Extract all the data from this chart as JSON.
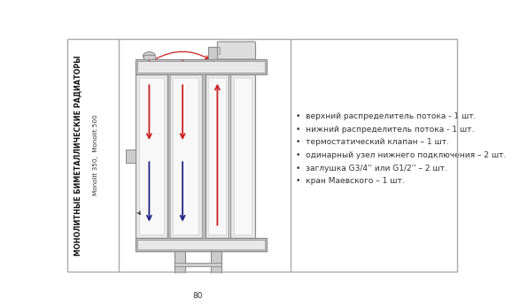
{
  "bg_color": "#ffffff",
  "border_color": "#aaaaaa",
  "left_text_main": "МОНОЛИТНЫЕ БИМЕТАЛЛИЧЕСКИЕ РАДИАТОРЫ",
  "left_text_sub": "Monolit 350,  Monolit 500",
  "bullet_items": [
    "верхний распределитель потока - 1 шт.",
    "нижний распределитель потока - 1 шт.",
    "термостатический клапан – 1 шт.",
    "одинарный узел нижнего подключения – 2 шт.",
    "заглушка G3/4'' или G1/2'' – 2 шт.",
    "кран Маевского – 1 шт."
  ],
  "dim_label": "80",
  "red_color": "#cc2222",
  "blue_color": "#222288",
  "dark_color": "#333333",
  "line_gray": "#888888",
  "fill_light": "#e8e8e8",
  "fill_mid": "#cccccc",
  "fill_white": "#f8f8f8"
}
